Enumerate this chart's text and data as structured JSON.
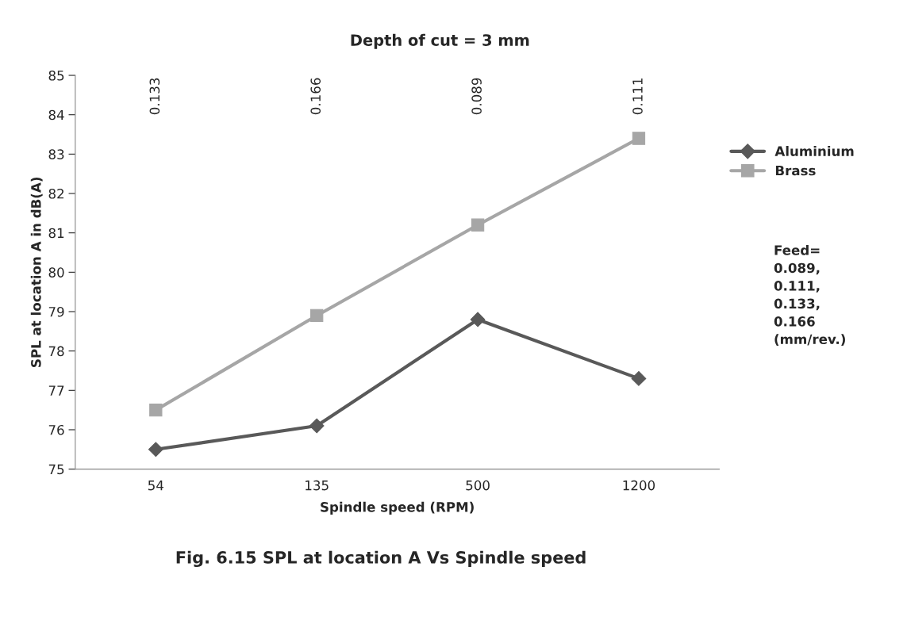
{
  "chart_data": {
    "type": "line",
    "title": "Depth of cut = 3 mm",
    "xlabel": "Spindle speed (RPM)",
    "ylabel": "SPL at location A in dB(A)",
    "categories": [
      "54",
      "135",
      "500",
      "1200"
    ],
    "series": [
      {
        "name": "Aluminium",
        "color": "#595959",
        "marker": "diamond",
        "values": [
          75.5,
          76.1,
          78.8,
          77.3
        ]
      },
      {
        "name": "Brass",
        "color": "#a6a6a6",
        "marker": "square",
        "values": [
          76.5,
          78.9,
          81.2,
          83.4
        ]
      }
    ],
    "ylim": [
      75,
      85
    ],
    "yticks": [
      75,
      76,
      77,
      78,
      79,
      80,
      81,
      82,
      83,
      84,
      85
    ],
    "grid": false,
    "legend": "right",
    "line_style": "solid",
    "annotations": [
      "0.133",
      "0.166",
      "0.089",
      "0.111",
      "Feed=\n0.089,\n0.111,\n0.133,\n0.166\n(mm/rev.)",
      "Fig. 6.15 SPL at location A Vs Spindle speed"
    ]
  }
}
